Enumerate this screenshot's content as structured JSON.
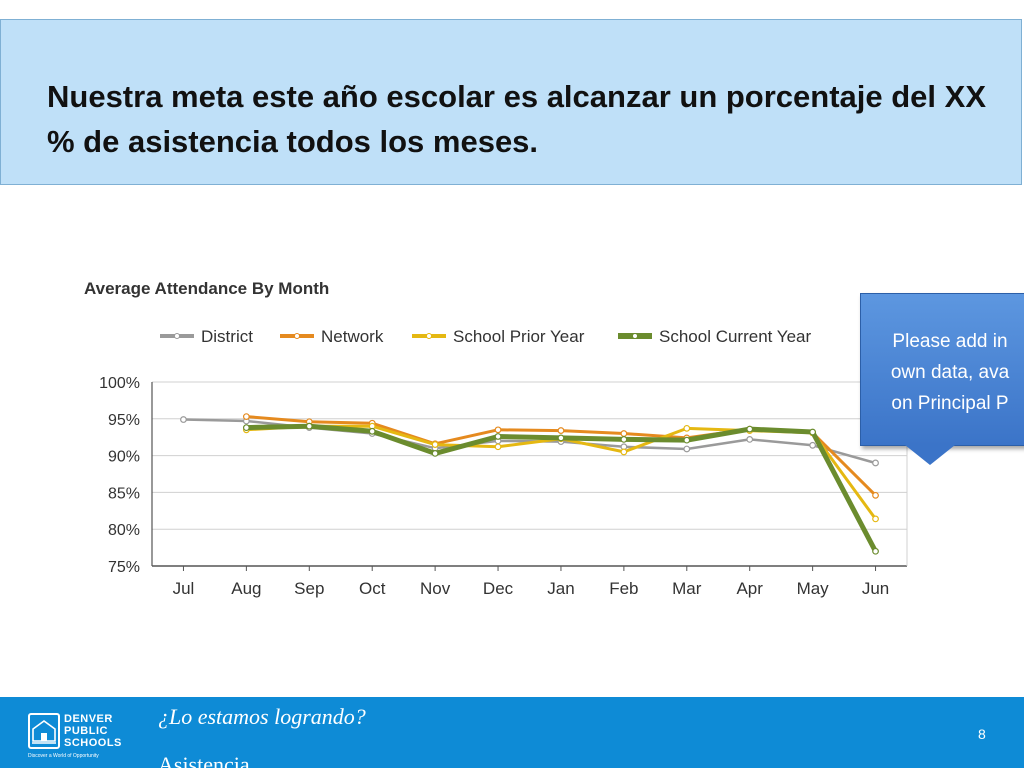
{
  "slide": {
    "title": "Nuestra meta este año escolar es alcanzar un porcentaje del XX % de asistencia todos los meses.",
    "callout_lines": [
      "Please add in",
      "own data, ava",
      "on Principal P"
    ],
    "footer_subtitle": "¿Lo estamos logrando?",
    "footer_section": "Asistencia",
    "page_number": "8",
    "logo_lines": [
      "DENVER",
      "PUBLIC",
      "SCHOOLS"
    ],
    "logo_tagline": "Discover a World of Opportunity"
  },
  "colors": {
    "title_bg": "#bfe0f8",
    "footer_bg": "#0e8bd6",
    "callout_bg": "#4a86d6",
    "district": "#9a9a9a",
    "network": "#e58a1f",
    "prior_year": "#e5b812",
    "current_year": "#6b8c2e"
  },
  "chart_data": {
    "type": "line",
    "title": "Average Attendance By Month",
    "categories": [
      "Jul",
      "Aug",
      "Sep",
      "Oct",
      "Nov",
      "Dec",
      "Jan",
      "Feb",
      "Mar",
      "Apr",
      "May",
      "Jun"
    ],
    "y_ticks": [
      "100%",
      "95%",
      "90%",
      "85%",
      "80%",
      "75%"
    ],
    "ylim": [
      75,
      100
    ],
    "grid": true,
    "legend_position": "top",
    "series": [
      {
        "name": "District",
        "color": "#9a9a9a",
        "values": [
          94.9,
          94.7,
          93.8,
          93.0,
          91.0,
          92.0,
          91.9,
          91.2,
          90.9,
          92.2,
          91.4,
          89.0
        ]
      },
      {
        "name": "Network",
        "color": "#e58a1f",
        "values": [
          null,
          95.3,
          94.6,
          94.4,
          91.6,
          93.5,
          93.4,
          93.0,
          92.4,
          93.6,
          93.1,
          84.6
        ]
      },
      {
        "name": "School Prior Year",
        "color": "#e5b812",
        "values": [
          null,
          93.5,
          94.0,
          94.0,
          91.5,
          91.2,
          92.3,
          90.5,
          93.7,
          93.4,
          93.1,
          81.4
        ]
      },
      {
        "name": "School Current Year",
        "color": "#6b8c2e",
        "values": [
          null,
          93.8,
          94.0,
          93.3,
          90.3,
          92.6,
          92.4,
          92.2,
          92.1,
          93.6,
          93.2,
          77.0
        ]
      }
    ]
  }
}
